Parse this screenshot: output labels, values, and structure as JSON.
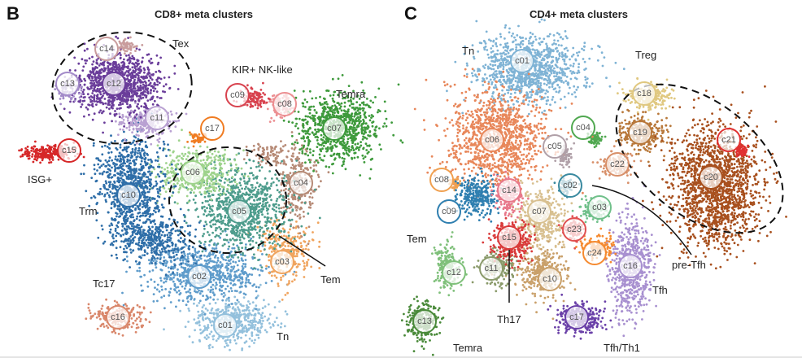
{
  "chart_data": [
    {
      "type": "scatter",
      "panel_letter": "B",
      "title": "CD8+ meta clusters",
      "axes": "none",
      "grid": false,
      "clusters": [
        {
          "id": "c01",
          "color": "#93c0dc"
        },
        {
          "id": "c02",
          "color": "#5f9ccb"
        },
        {
          "id": "c03",
          "color": "#f0a45e"
        },
        {
          "id": "c04",
          "color": "#b68a76"
        },
        {
          "id": "c05",
          "color": "#4d9c8c"
        },
        {
          "id": "c06",
          "color": "#9ed38c"
        },
        {
          "id": "c07",
          "color": "#3e9a3c"
        },
        {
          "id": "c08",
          "color": "#ec8f92"
        },
        {
          "id": "c09",
          "color": "#d8434f"
        },
        {
          "id": "c10",
          "color": "#2e6ea8"
        },
        {
          "id": "c11",
          "color": "#b9a1d2"
        },
        {
          "id": "c12",
          "color": "#6a3d9a"
        },
        {
          "id": "c13",
          "color": "#a38bc9"
        },
        {
          "id": "c14",
          "color": "#c99c9c"
        },
        {
          "id": "c15",
          "color": "#d62728"
        },
        {
          "id": "c16",
          "color": "#d9876b"
        },
        {
          "id": "c17",
          "color": "#f07c22"
        }
      ],
      "annotations": [
        "Tex",
        "KIR+ NK-like",
        "Temra",
        "ISG+",
        "Trm",
        "Tem",
        "Tc17",
        "Tn"
      ]
    },
    {
      "type": "scatter",
      "panel_letter": "C",
      "title": "CD4+ meta clusters",
      "axes": "none",
      "grid": false,
      "clusters": [
        {
          "id": "c01",
          "color": "#7fb3d5"
        },
        {
          "id": "c02",
          "color": "#3a8aa0"
        },
        {
          "id": "c03",
          "color": "#70c08a"
        },
        {
          "id": "c04",
          "color": "#50a850"
        },
        {
          "id": "c05",
          "color": "#b0a0a8"
        },
        {
          "id": "c06",
          "color": "#e8875a"
        },
        {
          "id": "c07",
          "color": "#d8c090"
        },
        {
          "id": "c08",
          "color": "#f0a050"
        },
        {
          "id": "c09",
          "color": "#2f7fb0"
        },
        {
          "id": "c10",
          "color": "#c9a06a"
        },
        {
          "id": "c11",
          "color": "#8a9a6a"
        },
        {
          "id": "c12",
          "color": "#7fc07a"
        },
        {
          "id": "c13",
          "color": "#4a8a3a"
        },
        {
          "id": "c14",
          "color": "#e8788a"
        },
        {
          "id": "c15",
          "color": "#d93a3a"
        },
        {
          "id": "c16",
          "color": "#a890d0"
        },
        {
          "id": "c17",
          "color": "#6a40a8"
        },
        {
          "id": "c18",
          "color": "#e0c880"
        },
        {
          "id": "c19",
          "color": "#b8783a"
        },
        {
          "id": "c20",
          "color": "#a8501e"
        },
        {
          "id": "c21",
          "color": "#e03030"
        },
        {
          "id": "c22",
          "color": "#d8906a"
        },
        {
          "id": "c23",
          "color": "#e05050"
        },
        {
          "id": "c24",
          "color": "#f58a30"
        }
      ],
      "annotations": [
        "Tn",
        "Treg",
        "Tem",
        "Th17",
        "Temra",
        "pre-Tfh",
        "Tfh",
        "Tfh/Th1"
      ]
    }
  ]
}
